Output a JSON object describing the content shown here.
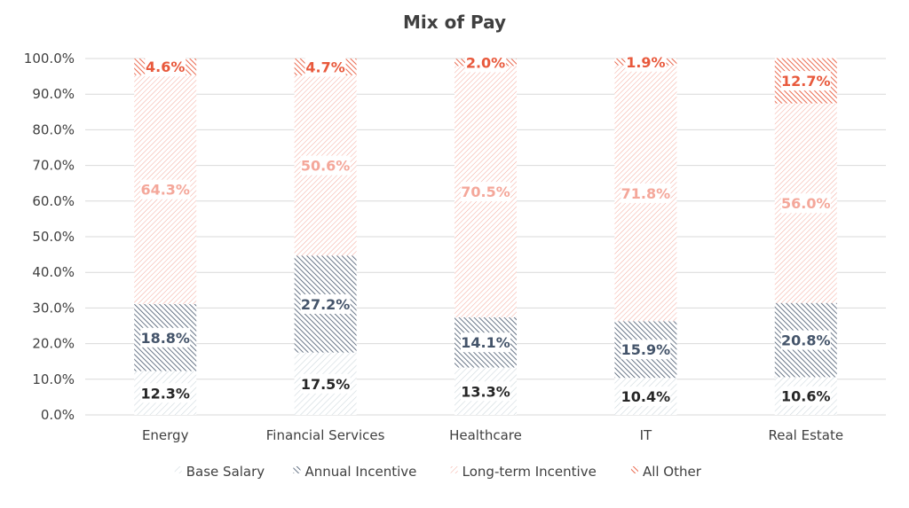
{
  "chart_data": {
    "type": "bar",
    "stacked": true,
    "title": "Mix of Pay",
    "xlabel": "",
    "ylabel": "",
    "ylim": [
      0,
      100
    ],
    "y_ticks": [
      "0.0%",
      "10.0%",
      "20.0%",
      "30.0%",
      "40.0%",
      "50.0%",
      "60.0%",
      "70.0%",
      "80.0%",
      "90.0%",
      "100.0%"
    ],
    "grid": true,
    "legend_position": "bottom",
    "categories": [
      "Energy",
      "Financial Services",
      "Healthcare",
      "IT",
      "Real Estate"
    ],
    "series": [
      {
        "name": "Base Salary",
        "values": [
          12.3,
          17.5,
          13.3,
          10.4,
          10.6
        ],
        "labels": [
          "12.3%",
          "17.5%",
          "13.3%",
          "10.4%",
          "10.6%"
        ],
        "color": "#cfd9de",
        "label_color": "#262626"
      },
      {
        "name": "Annual Incentive",
        "values": [
          18.8,
          27.2,
          14.1,
          15.9,
          20.8
        ],
        "labels": [
          "18.8%",
          "27.2%",
          "14.1%",
          "15.9%",
          "20.8%"
        ],
        "color": "#44546a",
        "label_color": "#44546a"
      },
      {
        "name": "Long-term Incentive",
        "values": [
          64.3,
          50.6,
          70.5,
          71.8,
          56.0
        ],
        "labels": [
          "64.3%",
          "50.6%",
          "70.5%",
          "71.8%",
          "56.0%"
        ],
        "color": "#f4a79a",
        "label_color": "#f4a79a"
      },
      {
        "name": "All Other",
        "values": [
          4.6,
          4.7,
          2.0,
          1.9,
          12.7
        ],
        "labels": [
          "4.6%",
          "4.7%",
          "2.0%",
          "1.9%",
          "12.7%"
        ],
        "color": "#e8593c",
        "label_color": "#e8593c"
      }
    ]
  }
}
